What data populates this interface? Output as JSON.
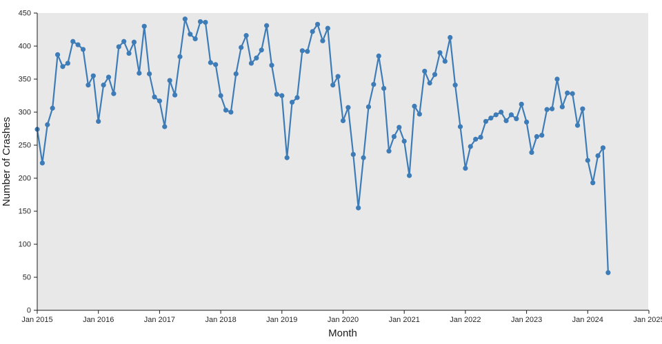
{
  "chart_data": {
    "type": "line",
    "title": "",
    "xlabel": "Month",
    "ylabel": "Number of Crashes",
    "x_start_month": "2015-01",
    "x_end_month": "2024-05",
    "x_axis_total_months": 120,
    "ylim": [
      0,
      450
    ],
    "y_ticks": [
      0,
      50,
      100,
      150,
      200,
      250,
      300,
      350,
      400,
      450
    ],
    "x_tick_months": [
      0,
      12,
      24,
      36,
      48,
      60,
      72,
      84,
      96,
      108,
      120
    ],
    "x_tick_labels": [
      "Jan 2015",
      "Jan 2016",
      "Jan 2017",
      "Jan 2018",
      "Jan 2019",
      "Jan 2020",
      "Jan 2021",
      "Jan 2022",
      "Jan 2023",
      "Jan 2024",
      "Jan 2025"
    ],
    "grid": false,
    "legend_position": "none",
    "line_color": "#3e7cb7",
    "marker_color": "#3e7cb7",
    "plot_background": "#e8e8e8",
    "axis_color": "#1a1a1a",
    "series": [
      {
        "name": "Number of Crashes",
        "values": [
          274,
          223,
          281,
          306,
          387,
          369,
          374,
          407,
          402,
          395,
          341,
          355,
          286,
          341,
          353,
          328,
          399,
          407,
          389,
          406,
          359,
          430,
          358,
          323,
          317,
          278,
          348,
          326,
          384,
          441,
          418,
          411,
          437,
          436,
          375,
          372,
          325,
          303,
          300,
          358,
          398,
          416,
          374,
          382,
          394,
          431,
          371,
          327,
          325,
          231,
          315,
          322,
          393,
          392,
          422,
          433,
          408,
          427,
          341,
          354,
          287,
          307,
          236,
          155,
          231,
          308,
          342,
          385,
          336,
          241,
          263,
          277,
          256,
          204,
          309,
          297,
          362,
          344,
          357,
          390,
          377,
          413,
          341,
          278,
          215,
          248,
          259,
          262,
          286,
          291,
          296,
          300,
          287,
          296,
          290,
          312,
          285,
          239,
          263,
          265,
          304,
          305,
          350,
          308,
          329,
          328,
          280,
          305,
          227,
          193,
          234,
          246,
          57
        ]
      }
    ]
  }
}
